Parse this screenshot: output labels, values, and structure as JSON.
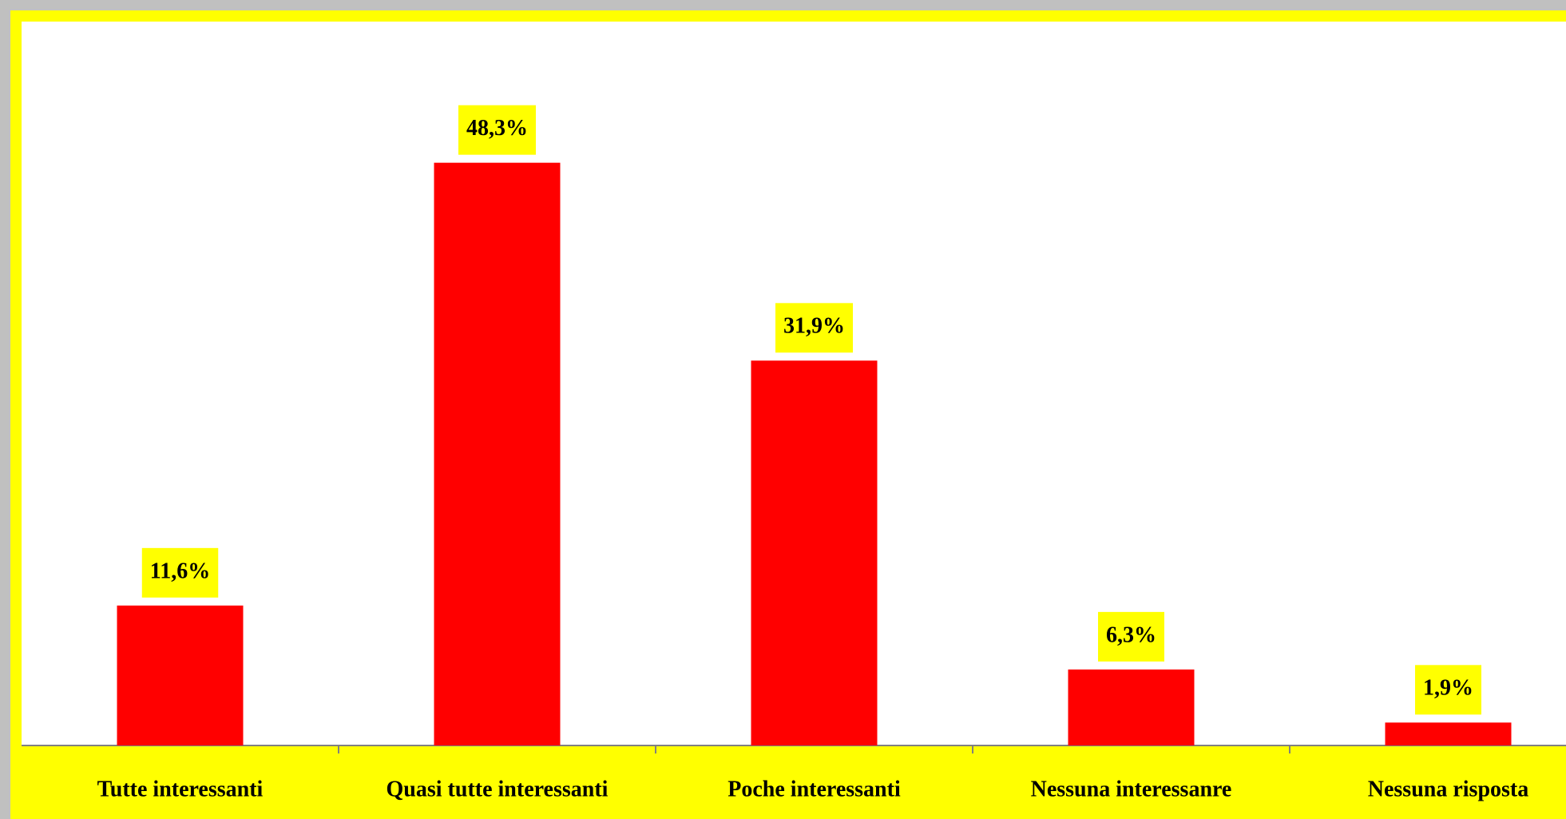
{
  "chart_data": {
    "type": "bar",
    "categories": [
      "Tutte interessanti",
      "Quasi tutte interessanti",
      "Poche interessanti",
      "Nessuna interessanre",
      "Nessuna risposta"
    ],
    "values": [
      11.6,
      48.3,
      31.9,
      6.3,
      1.9
    ],
    "value_labels": [
      "11,6%",
      "48,3%",
      "31,9%",
      "6,3%",
      "1,9%"
    ],
    "color": "#ff0000",
    "ylim": [
      0,
      60
    ]
  }
}
